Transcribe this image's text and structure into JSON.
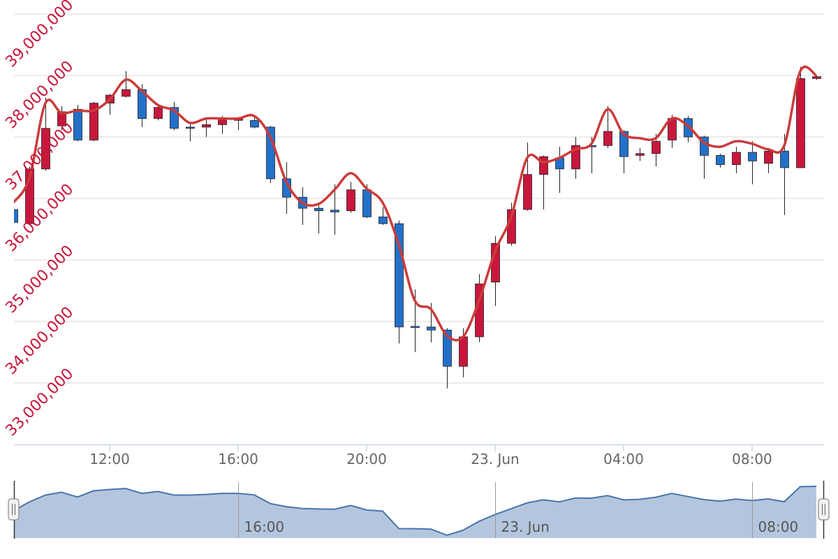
{
  "chart_data": {
    "type": "candlestick",
    "x": [
      9,
      9.5,
      10,
      10.5,
      11,
      11.5,
      12,
      12.5,
      13,
      13.5,
      14,
      14.5,
      15,
      15.5,
      16,
      16.5,
      17,
      17.5,
      18,
      18.5,
      19,
      19.5,
      20,
      20.5,
      21,
      21.5,
      22,
      22.5,
      23,
      23.5,
      24,
      24.5,
      25,
      25.5,
      26,
      26.5,
      27,
      27.5,
      28,
      28.5,
      29,
      29.5,
      30,
      30.5,
      31,
      31.5,
      32,
      32.5,
      33,
      33.5,
      34
    ],
    "open": [
      35820000,
      35590000,
      36480000,
      37180000,
      37450000,
      36950000,
      37550000,
      37660000,
      37770000,
      37300000,
      37480000,
      37160000,
      37160000,
      37200000,
      37270000,
      37270000,
      37160000,
      36320000,
      36020000,
      35840000,
      35810000,
      35800000,
      36140000,
      35700000,
      35590000,
      33920000,
      33910000,
      33860000,
      33270000,
      33750000,
      34640000,
      35270000,
      35820000,
      36390000,
      36660000,
      36480000,
      36860000,
      36860000,
      37090000,
      36700000,
      36730000,
      36950000,
      37300000,
      37000000,
      36700000,
      36550000,
      36750000,
      36570000,
      36770000,
      36500000,
      37950000
    ],
    "high": [
      35840000,
      36520000,
      37640000,
      37500000,
      37520000,
      37570000,
      37700000,
      38070000,
      37860000,
      37520000,
      37570000,
      37230000,
      37300000,
      37340000,
      37320000,
      37340000,
      37180000,
      36590000,
      36180000,
      35930000,
      36230000,
      36270000,
      36230000,
      35860000,
      35640000,
      34520000,
      34300000,
      33890000,
      33890000,
      34770000,
      35390000,
      35930000,
      36910000,
      36700000,
      36840000,
      37000000,
      37000000,
      37500000,
      37110000,
      36820000,
      37050000,
      37360000,
      37340000,
      37020000,
      36730000,
      36840000,
      36930000,
      36800000,
      37050000,
      38140000,
      38000000
    ],
    "low": [
      35360000,
      35570000,
      36450000,
      37110000,
      36930000,
      36930000,
      37360000,
      37640000,
      37160000,
      37270000,
      37110000,
      36930000,
      37000000,
      37050000,
      37110000,
      37140000,
      36250000,
      35750000,
      35570000,
      35430000,
      35410000,
      35770000,
      35680000,
      35570000,
      33640000,
      33500000,
      33660000,
      32910000,
      33090000,
      33660000,
      34250000,
      35230000,
      35800000,
      35820000,
      36090000,
      36320000,
      36410000,
      36820000,
      36410000,
      36610000,
      36520000,
      36820000,
      36910000,
      36320000,
      36500000,
      36410000,
      36230000,
      36410000,
      35730000,
      36500000,
      37930000
    ],
    "close": [
      35610000,
      36480000,
      37140000,
      37410000,
      36950000,
      37550000,
      37680000,
      37770000,
      37300000,
      37480000,
      37140000,
      37140000,
      37200000,
      37300000,
      37300000,
      37160000,
      36320000,
      36020000,
      35840000,
      35800000,
      35780000,
      36140000,
      35700000,
      35590000,
      33910000,
      33900000,
      33860000,
      33270000,
      33750000,
      34610000,
      35270000,
      35820000,
      36390000,
      36680000,
      36480000,
      36860000,
      36840000,
      37090000,
      36680000,
      36730000,
      36930000,
      37300000,
      37000000,
      36700000,
      36550000,
      36750000,
      36610000,
      36770000,
      36500000,
      37950000,
      37980000
    ],
    "up_color": "#c8173a",
    "down_color": "#2370c9",
    "line": {
      "type": "line",
      "color": "#cc3b3b",
      "smooth": true,
      "values": [
        35930000,
        36330000,
        37550000,
        37390000,
        37430000,
        37430000,
        37610000,
        37930000,
        37750000,
        37520000,
        37430000,
        37230000,
        37300000,
        37300000,
        37300000,
        37340000,
        37000000,
        36270000,
        35930000,
        35910000,
        36140000,
        36410000,
        36160000,
        35930000,
        35250000,
        34340000,
        34200000,
        33770000,
        33750000,
        34340000,
        35140000,
        35700000,
        36660000,
        36590000,
        36660000,
        36800000,
        36890000,
        37450000,
        37050000,
        36980000,
        36980000,
        37300000,
        37180000,
        36910000,
        36840000,
        36930000,
        36890000,
        36800000,
        36860000,
        38070000,
        38000000
      ]
    },
    "xlim": [
      9.02,
      34.24
    ],
    "xticks": [
      {
        "value": 12,
        "label": "12:00"
      },
      {
        "value": 16,
        "label": "16:00"
      },
      {
        "value": 20,
        "label": "20:00"
      },
      {
        "value": 24,
        "label": "23. Jun"
      },
      {
        "value": 28,
        "label": "04:00"
      },
      {
        "value": 32,
        "label": "08:00"
      }
    ],
    "ylim": [
      32000000,
      39000000
    ],
    "yticks": [
      {
        "value": 33000000,
        "label": "33,000,000"
      },
      {
        "value": 34000000,
        "label": "34,000,000"
      },
      {
        "value": 35000000,
        "label": "35,000,000"
      },
      {
        "value": 36000000,
        "label": "36,000,000"
      },
      {
        "value": 37000000,
        "label": "37,000,000"
      },
      {
        "value": 38000000,
        "label": "38,000,000"
      },
      {
        "value": 39000000,
        "label": "39,000,000"
      }
    ],
    "grid": true,
    "navigator": {
      "color": "#4a74aa",
      "fill": "#b4c6de",
      "xticks": [
        {
          "value": 16,
          "label": "16:00"
        },
        {
          "value": 24,
          "label": "23. Jun"
        },
        {
          "value": 32,
          "label": "08:00"
        }
      ]
    }
  }
}
